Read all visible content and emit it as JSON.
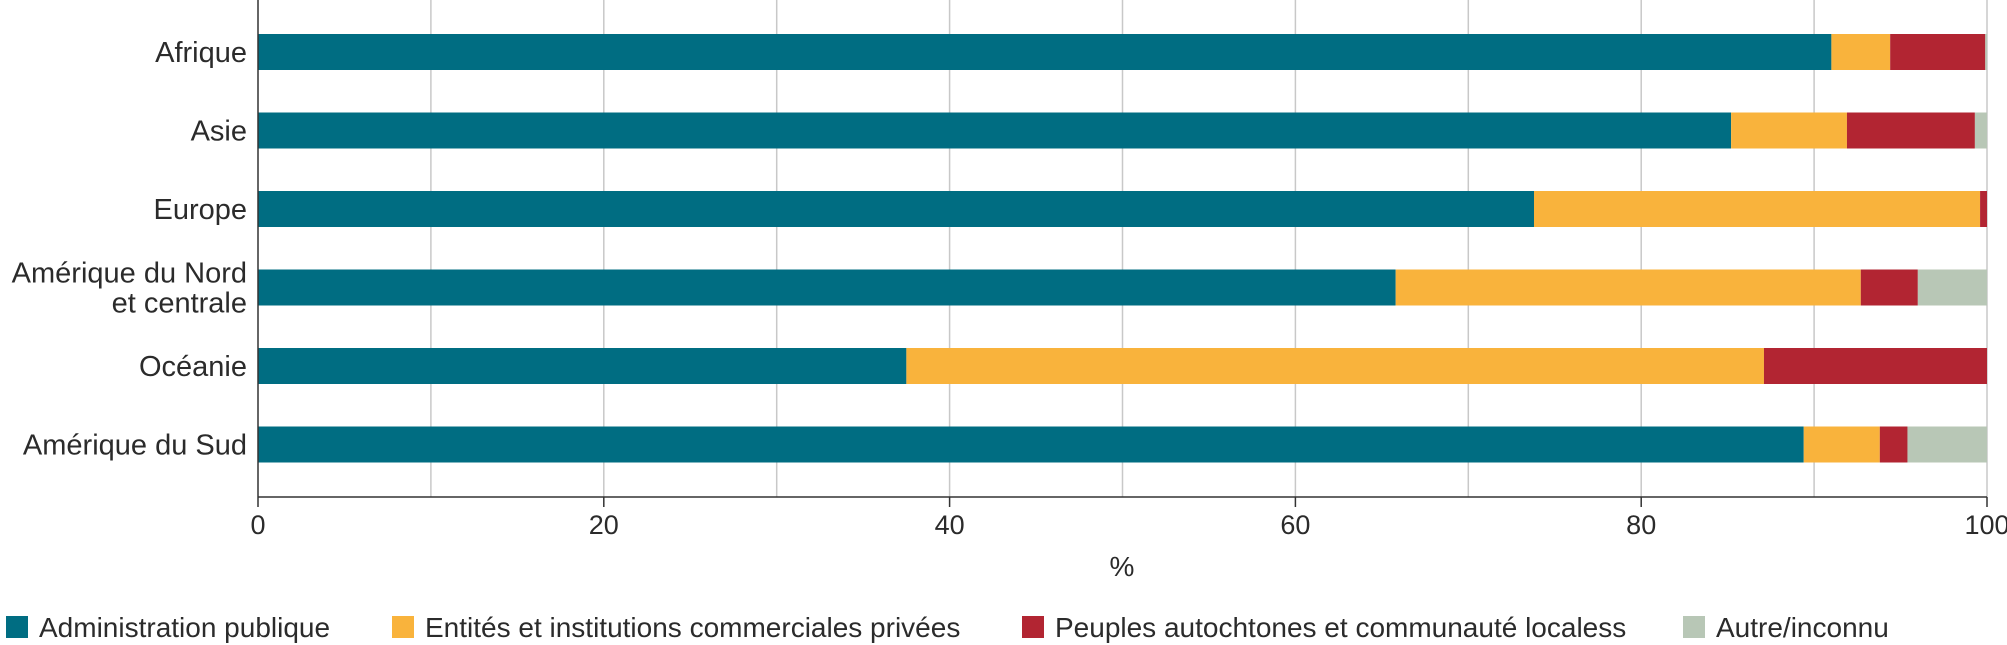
{
  "chart_data": {
    "type": "bar",
    "orientation": "horizontal",
    "stacked": true,
    "categories": [
      [
        "Afrique"
      ],
      [
        "Asie"
      ],
      [
        "Europe"
      ],
      [
        "Amérique du Nord",
        "et centrale"
      ],
      [
        "Océanie"
      ],
      [
        "Amérique du Sud"
      ]
    ],
    "series": [
      {
        "name": "Administration publique",
        "color": "#006d82",
        "values": [
          91.0,
          85.2,
          73.8,
          65.8,
          37.5,
          89.4
        ]
      },
      {
        "name": "Entités et institutions commerciales privées",
        "color": "#f9b33c",
        "values": [
          3.4,
          6.7,
          25.8,
          26.9,
          49.6,
          4.4
        ]
      },
      {
        "name": "Peuples autochtones et communauté localess",
        "color": "#b22532",
        "values": [
          5.5,
          7.4,
          0.4,
          3.3,
          12.9,
          1.6
        ]
      },
      {
        "name": "Autre/inconnu",
        "color": "#b8c7b6",
        "values": [
          0.1,
          0.7,
          0.0,
          4.0,
          0.0,
          4.6
        ]
      }
    ],
    "x_ticks": [
      "0",
      "20",
      "40",
      "60",
      "80",
      "100"
    ],
    "xlabel": "%",
    "xlim": [
      0,
      100
    ],
    "grid": "vertical, every 10",
    "legend": "bottom"
  }
}
